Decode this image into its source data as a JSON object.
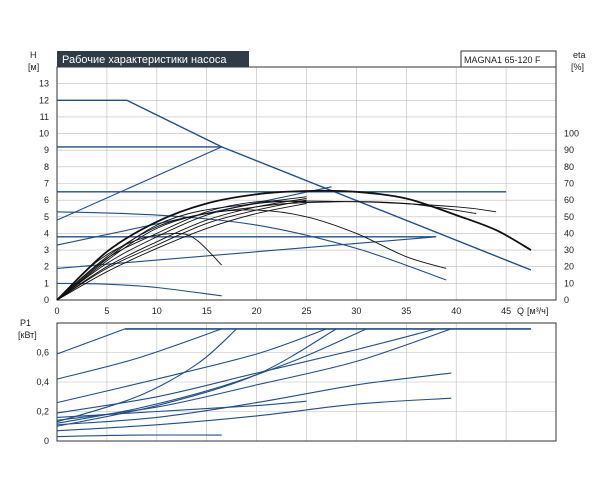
{
  "title": "Рабочие характеристики насоса",
  "model": "MAGNA1 65-120 F",
  "colors": {
    "curve": "#1f4e8c",
    "max_curve": "#111111",
    "grid": "#b9bcc0",
    "frame": "#333333",
    "title_bg": "#2f3b45"
  },
  "chart_data": [
    {
      "type": "line",
      "name": "head",
      "y_label": "H",
      "y_unit": "[м]",
      "y2_label": "eta",
      "y2_unit": "[%]",
      "x_label": "Q",
      "x_unit": "[м³/ч]",
      "xlim": [
        0,
        50
      ],
      "ylim": [
        0,
        14
      ],
      "y2lim": [
        0,
        140
      ],
      "x_ticks": [
        "0",
        "5",
        "10",
        "15",
        "20",
        "25",
        "30",
        "35",
        "40",
        "45"
      ],
      "y_ticks": [
        "0",
        "1",
        "2",
        "3",
        "4",
        "5",
        "6",
        "7",
        "8",
        "9",
        "10",
        "11",
        "12",
        "13"
      ],
      "y2_ticks": [
        "0",
        "10",
        "20",
        "30",
        "40",
        "50",
        "60",
        "70",
        "80",
        "90",
        "100"
      ],
      "grid": true,
      "series": [
        {
          "group": "constant",
          "points": [
            [
              0,
              12
            ],
            [
              7,
              12
            ],
            [
              16.5,
              9.2
            ],
            [
              47.5,
              1.8
            ]
          ]
        },
        {
          "group": "constant",
          "points": [
            [
              0,
              9.2
            ],
            [
              16.5,
              9.2
            ]
          ]
        },
        {
          "group": "constant",
          "points": [
            [
              0,
              6.5
            ],
            [
              45,
              6.5
            ]
          ]
        },
        {
          "group": "constant",
          "points": [
            [
              0,
              3.8
            ],
            [
              38,
              3.8
            ]
          ]
        },
        {
          "group": "proportional",
          "points": [
            [
              0,
              4.8
            ],
            [
              16.5,
              9.2
            ]
          ]
        },
        {
          "group": "proportional",
          "points": [
            [
              0,
              3.3
            ],
            [
              27.5,
              6.8
            ]
          ]
        },
        {
          "group": "proportional",
          "points": [
            [
              0,
              1.9
            ],
            [
              38,
              3.8
            ]
          ]
        },
        {
          "group": "decay",
          "points": [
            [
              0,
              5.3
            ],
            [
              10,
              5.1
            ],
            [
              20,
              4.5
            ],
            [
              30,
              3.1
            ],
            [
              39,
              1.2
            ]
          ]
        },
        {
          "group": "decay",
          "points": [
            [
              0,
              1
            ],
            [
              5,
              0.95
            ],
            [
              10,
              0.75
            ],
            [
              16.5,
              0.25
            ]
          ]
        },
        {
          "group": "max",
          "points": [
            [
              0,
              0
            ],
            [
              5,
              2.9
            ],
            [
              10,
              4.7
            ],
            [
              15,
              5.8
            ],
            [
              20,
              6.35
            ],
            [
              25,
              6.55
            ],
            [
              30,
              6.5
            ],
            [
              35,
              6.1
            ],
            [
              40,
              5.1
            ],
            [
              44,
              4.2
            ],
            [
              47.5,
              3.0
            ]
          ]
        },
        {
          "group": "efficiency",
          "points": [
            [
              0,
              0
            ],
            [
              5,
              2.6
            ],
            [
              10,
              4.4
            ],
            [
              15,
              5.2
            ],
            [
              20,
              5.4
            ],
            [
              25,
              5.0
            ],
            [
              30,
              4.0
            ],
            [
              35,
              2.6
            ],
            [
              39,
              1.9
            ]
          ]
        },
        {
          "group": "efficiency",
          "points": [
            [
              0,
              0
            ],
            [
              4,
              2.3
            ],
            [
              8,
              3.6
            ],
            [
              12,
              4.0
            ],
            [
              14,
              3.6
            ],
            [
              16.5,
              2.1
            ]
          ]
        },
        {
          "group": "efficiency",
          "points": [
            [
              0,
              0
            ],
            [
              5,
              2.5
            ],
            [
              10,
              4.0
            ],
            [
              15,
              5.3
            ],
            [
              20,
              5.9
            ],
            [
              25,
              5.9
            ]
          ]
        },
        {
          "group": "efficiency",
          "points": [
            [
              0,
              0
            ],
            [
              5,
              2.2
            ],
            [
              10,
              3.8
            ],
            [
              15,
              5.1
            ],
            [
              20,
              5.8
            ],
            [
              25,
              6.2
            ]
          ]
        },
        {
          "group": "efficiency",
          "points": [
            [
              0,
              0
            ],
            [
              5,
              2.0
            ],
            [
              10,
              3.5
            ],
            [
              15,
              4.8
            ],
            [
              20,
              5.6
            ],
            [
              25,
              6.1
            ]
          ]
        },
        {
          "group": "efficiency",
          "points": [
            [
              0,
              0
            ],
            [
              5,
              1.9
            ],
            [
              10,
              3.3
            ],
            [
              15,
              4.6
            ],
            [
              20,
              5.4
            ],
            [
              25,
              6.0
            ]
          ]
        },
        {
          "group": "efficiency",
          "points": [
            [
              0,
              0
            ],
            [
              5,
              1.7
            ],
            [
              10,
              3.1
            ],
            [
              15,
              4.3
            ],
            [
              20,
              5.2
            ],
            [
              25,
              5.8
            ]
          ]
        },
        {
          "group": "efficiency",
          "points": [
            [
              0,
              0
            ],
            [
              10,
              4.5
            ],
            [
              20,
              5.8
            ],
            [
              30,
              5.9
            ],
            [
              40,
              5.6
            ],
            [
              44,
              5.3
            ]
          ]
        },
        {
          "group": "efficiency",
          "points": [
            [
              0,
              0
            ],
            [
              10,
              4.3
            ],
            [
              20,
              5.6
            ],
            [
              28,
              5.9
            ],
            [
              35,
              5.8
            ],
            [
              42,
              5.2
            ]
          ]
        }
      ]
    },
    {
      "type": "line",
      "name": "power",
      "y_label": "P1",
      "y_unit": "[кВт]",
      "x_label": "Q",
      "x_unit": "[м³/ч]",
      "xlim": [
        0,
        50
      ],
      "ylim": [
        0,
        0.8
      ],
      "y_ticks": [
        "0",
        "0,2",
        "0,4",
        "0,6"
      ],
      "grid": true,
      "series": [
        {
          "group": "max",
          "points": [
            [
              6.8,
              0.76
            ],
            [
              47.5,
              0.76
            ]
          ]
        },
        {
          "group": "power",
          "points": [
            [
              0,
              0.59
            ],
            [
              6.8,
              0.76
            ]
          ]
        },
        {
          "group": "power",
          "points": [
            [
              0,
              0.42
            ],
            [
              8,
              0.56
            ],
            [
              16.5,
              0.76
            ]
          ]
        },
        {
          "group": "power",
          "points": [
            [
              0,
              0.26
            ],
            [
              10,
              0.42
            ],
            [
              20,
              0.59
            ],
            [
              27,
              0.76
            ]
          ]
        },
        {
          "group": "power",
          "points": [
            [
              0,
              0.19
            ],
            [
              10,
              0.3
            ],
            [
              20,
              0.46
            ],
            [
              30,
              0.62
            ],
            [
              38,
              0.76
            ]
          ]
        },
        {
          "group": "power",
          "points": [
            [
              0,
              0.14
            ],
            [
              10,
              0.23
            ],
            [
              20,
              0.38
            ],
            [
              30,
              0.54
            ],
            [
              39.5,
              0.76
            ]
          ]
        },
        {
          "group": "power",
          "points": [
            [
              0,
              0.13
            ],
            [
              8,
              0.3
            ],
            [
              14,
              0.52
            ],
            [
              18,
              0.76
            ]
          ]
        },
        {
          "group": "power",
          "points": [
            [
              0,
              0.11
            ],
            [
              10,
              0.16
            ],
            [
              20,
              0.26
            ],
            [
              30,
              0.38
            ],
            [
              39.5,
              0.46
            ]
          ]
        },
        {
          "group": "power",
          "points": [
            [
              0,
              0.07
            ],
            [
              10,
              0.11
            ],
            [
              20,
              0.17
            ],
            [
              30,
              0.25
            ],
            [
              39.5,
              0.29
            ]
          ]
        },
        {
          "group": "power",
          "points": [
            [
              0,
              0.1
            ],
            [
              10,
              0.24
            ],
            [
              20,
              0.45
            ],
            [
              28,
              0.76
            ]
          ]
        },
        {
          "group": "power",
          "points": [
            [
              0,
              0.12
            ],
            [
              8,
              0.22
            ],
            [
              16,
              0.36
            ],
            [
              24,
              0.55
            ],
            [
              31,
              0.76
            ]
          ]
        },
        {
          "group": "power",
          "points": [
            [
              0,
              0.16
            ],
            [
              10,
              0.2
            ],
            [
              20,
              0.24
            ],
            [
              25,
              0.27
            ]
          ]
        },
        {
          "group": "power",
          "points": [
            [
              0,
              0.03
            ],
            [
              8,
              0.04
            ],
            [
              16.5,
              0.04
            ]
          ]
        }
      ]
    }
  ]
}
